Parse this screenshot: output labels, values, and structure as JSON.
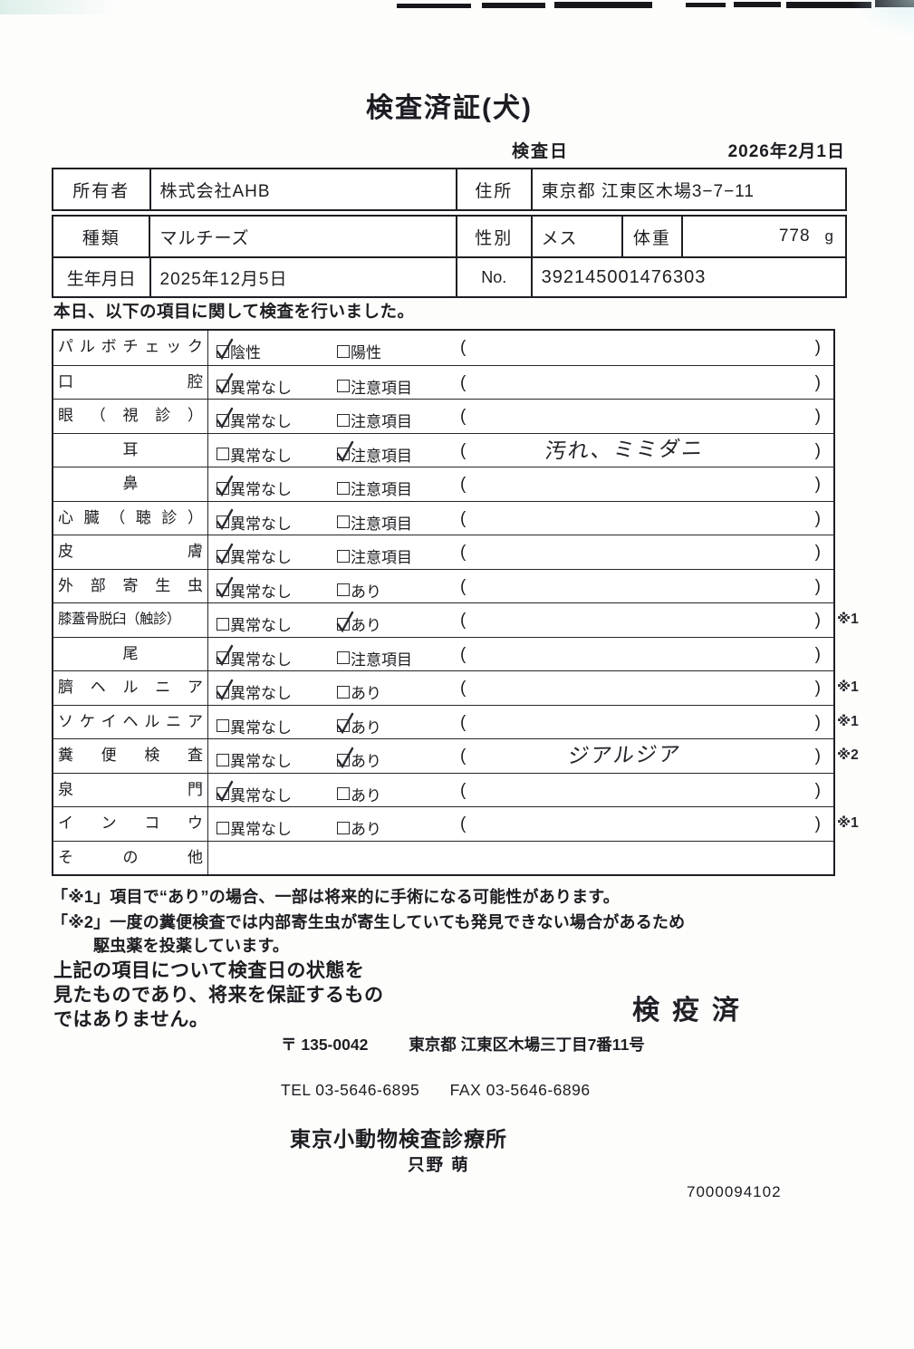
{
  "colors": {
    "ink": "#1d1d22",
    "border": "#1e1e24",
    "paper": "#fdfdfc"
  },
  "header": {
    "title": "検査済証(犬)",
    "inspection_date_label": "検査日",
    "inspection_date": "2026年2月1日"
  },
  "owner_table": {
    "owner_label": "所有者",
    "owner_value": "株式会社AHB",
    "address_label": "住所",
    "address_value": "東京都 江東区木場3−7−11"
  },
  "animal_table": {
    "breed_label": "種類",
    "breed_value": "マルチーズ",
    "sex_label": "性別",
    "sex_value": "メス",
    "weight_label": "体重",
    "weight_value": "778",
    "weight_unit": "g",
    "birth_label": "生年月日",
    "birth_value": "2025年12月5日",
    "no_label": "No.",
    "no_value": "392145001476303"
  },
  "intro": "本日、以下の項目に関して検査を行いました。",
  "inspection_table": {
    "paren_open": "(",
    "paren_close": ")",
    "rows": [
      {
        "label": "パ ル ボ チ ェ ッ ク",
        "align": "justify",
        "opt1": "陰性",
        "opt2": "陽性",
        "checked": 1,
        "note": "",
        "mark": ""
      },
      {
        "label": "口 腔",
        "align": "justify",
        "opt1": "異常なし",
        "opt2": "注意項目",
        "checked": 1,
        "note": "",
        "mark": ""
      },
      {
        "label": "眼 （ 視 診 ）",
        "align": "justify",
        "opt1": "異常なし",
        "opt2": "注意項目",
        "checked": 1,
        "note": "",
        "mark": ""
      },
      {
        "label": "耳",
        "align": "center",
        "opt1": "異常なし",
        "opt2": "注意項目",
        "checked": 2,
        "note": "汚れ、ミミダニ",
        "mark": ""
      },
      {
        "label": "鼻",
        "align": "center",
        "opt1": "異常なし",
        "opt2": "注意項目",
        "checked": 1,
        "note": "",
        "mark": ""
      },
      {
        "label": "心 臓 （ 聴 診 ）",
        "align": "justify",
        "opt1": "異常なし",
        "opt2": "注意項目",
        "checked": 1,
        "note": "",
        "mark": ""
      },
      {
        "label": "皮 膚",
        "align": "justify",
        "opt1": "異常なし",
        "opt2": "注意項目",
        "checked": 1,
        "note": "",
        "mark": ""
      },
      {
        "label": "外 部 寄 生 虫",
        "align": "justify",
        "opt1": "異常なし",
        "opt2": "あり",
        "checked": 1,
        "note": "",
        "mark": ""
      },
      {
        "label": "膝蓋骨脱臼（触診）",
        "align": "fit",
        "opt1": "異常なし",
        "opt2": "あり",
        "checked": 2,
        "note": "",
        "mark": "※1"
      },
      {
        "label": "尾",
        "align": "center",
        "opt1": "異常なし",
        "opt2": "注意項目",
        "checked": 1,
        "note": "",
        "mark": ""
      },
      {
        "label": "臍 ヘ ル ニ ア",
        "align": "justify",
        "opt1": "異常なし",
        "opt2": "あり",
        "checked": 1,
        "note": "",
        "mark": "※1"
      },
      {
        "label": "ソ ケ イ ヘ ル ニ ア",
        "align": "justify",
        "opt1": "異常なし",
        "opt2": "あり",
        "checked": 2,
        "note": "",
        "mark": "※1"
      },
      {
        "label": "糞 便 検 査",
        "align": "justify",
        "opt1": "異常なし",
        "opt2": "あり",
        "checked": 2,
        "note": "ジアルジア",
        "mark": "※2"
      },
      {
        "label": "泉 門",
        "align": "justify",
        "opt1": "異常なし",
        "opt2": "あり",
        "checked": 1,
        "note": "",
        "mark": ""
      },
      {
        "label": "イ ン コ ウ",
        "align": "justify",
        "opt1": "異常なし",
        "opt2": "あり",
        "checked": 0,
        "note": "",
        "mark": "※1"
      },
      {
        "label": "そ の 他",
        "align": "justify",
        "opt1": null,
        "opt2": null,
        "checked": 0,
        "note": "",
        "mark": ""
      }
    ]
  },
  "footnotes": {
    "line1": "「※1」項目で“あり”の場合、一部は将来的に手術になる可能性があります。",
    "line2": "「※2」一度の糞便検査では内部寄生虫が寄生していても発見できない場合があるため",
    "line3": "駆虫薬を投薬しています。"
  },
  "disclaimer": {
    "line1": "上記の項目について検査日の状態を",
    "line2": "見たものであり、将来を保証するもの",
    "line3": "ではありません。"
  },
  "footer": {
    "stamp": "検疫済",
    "postal": "〒 135-0042",
    "address": "東京都 江東区木場三丁目7番11号",
    "tel": "TEL 03-5646-6895",
    "fax": "FAX 03-5646-6896",
    "clinic": "東京小動物検査診療所",
    "veterinarian": "只野 萌",
    "serial": "7000094102"
  }
}
